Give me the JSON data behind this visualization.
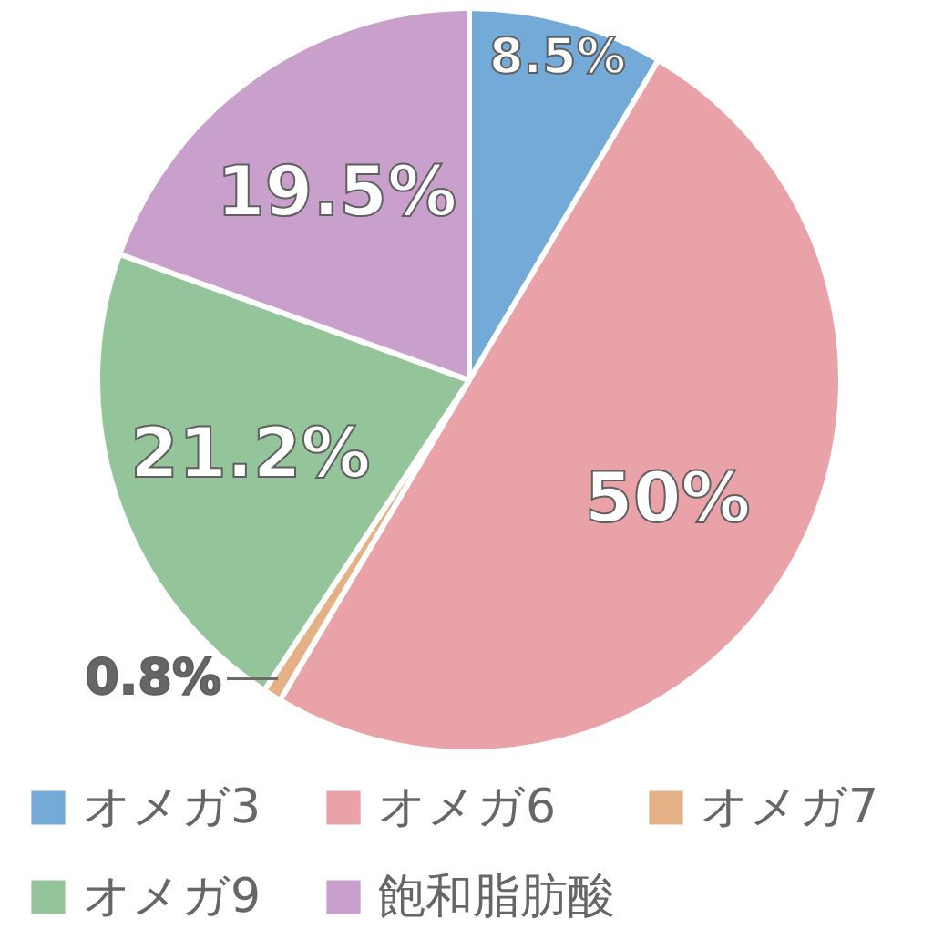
{
  "chart_data": {
    "type": "pie",
    "categories": [
      "オメガ3",
      "オメガ6",
      "オメガ7",
      "オメガ9",
      "飽和脂肪酸"
    ],
    "values": [
      8.5,
      50,
      0.8,
      21.2,
      19.5
    ],
    "colors": [
      "#74aad8",
      "#e8a2a8",
      "#e3b185",
      "#94c49a",
      "#c9a0cb"
    ],
    "value_labels": [
      "8.5%",
      "50%",
      "0.8%",
      "21.2%",
      "19.5%"
    ],
    "legend": "bottom"
  }
}
